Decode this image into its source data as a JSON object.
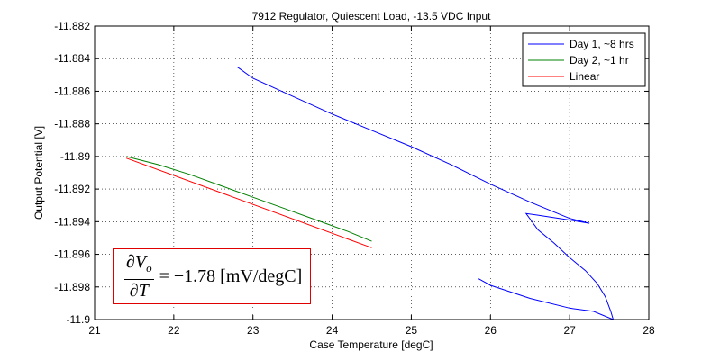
{
  "chart_data": {
    "type": "line",
    "title": "7912 Regulator, Quiescent Load, -13.5 VDC Input",
    "xlabel": "Case Temperature [degC]",
    "ylabel": "Output Potential [V]",
    "xlim": [
      21,
      28
    ],
    "ylim": [
      -11.9,
      -11.882
    ],
    "x_ticks": [
      21,
      22,
      23,
      24,
      25,
      26,
      27,
      28
    ],
    "x_tick_labels": [
      "21",
      "22",
      "23",
      "24",
      "25",
      "26",
      "27",
      "28"
    ],
    "y_ticks": [
      -11.882,
      -11.884,
      -11.886,
      -11.888,
      -11.89,
      -11.892,
      -11.894,
      -11.896,
      -11.898,
      -11.9
    ],
    "y_tick_labels": [
      "-11.882",
      "-11.884",
      "-11.886",
      "-11.888",
      "-11.89",
      "-11.892",
      "-11.894",
      "-11.896",
      "-11.898",
      "-11.9"
    ],
    "grid": true,
    "legend_position": "top-right",
    "series": [
      {
        "name": "Day 1, ~8 hrs",
        "color": "#0000ff",
        "points": [
          [
            22.8,
            -11.8845
          ],
          [
            23.0,
            -11.8852
          ],
          [
            23.5,
            -11.8863
          ],
          [
            24.0,
            -11.8874
          ],
          [
            24.5,
            -11.8884
          ],
          [
            25.0,
            -11.8894
          ],
          [
            25.5,
            -11.8905
          ],
          [
            26.0,
            -11.8917
          ],
          [
            26.5,
            -11.8928
          ],
          [
            27.0,
            -11.8938
          ],
          [
            27.25,
            -11.8941
          ],
          [
            27.0,
            -11.8939
          ],
          [
            26.6,
            -11.8936
          ],
          [
            26.45,
            -11.8935
          ],
          [
            26.6,
            -11.8945
          ],
          [
            26.8,
            -11.8953
          ],
          [
            27.0,
            -11.8962
          ],
          [
            27.2,
            -11.897
          ],
          [
            27.35,
            -11.8978
          ],
          [
            27.45,
            -11.8986
          ],
          [
            27.52,
            -11.8995
          ],
          [
            27.55,
            -11.9
          ],
          [
            27.3,
            -11.8995
          ],
          [
            27.0,
            -11.8993
          ],
          [
            26.5,
            -11.8987
          ],
          [
            26.0,
            -11.8979
          ],
          [
            25.85,
            -11.8975
          ]
        ]
      },
      {
        "name": "Day 2, ~1 hr",
        "color": "#008000",
        "points": [
          [
            21.4,
            -11.89
          ],
          [
            21.8,
            -11.8905
          ],
          [
            22.2,
            -11.8911
          ],
          [
            22.6,
            -11.8918
          ],
          [
            23.0,
            -11.8925
          ],
          [
            23.4,
            -11.8932
          ],
          [
            23.8,
            -11.8939
          ],
          [
            24.2,
            -11.8946
          ],
          [
            24.5,
            -11.8952
          ]
        ]
      },
      {
        "name": "Linear",
        "color": "#ff0000",
        "points": [
          [
            21.4,
            -11.8901
          ],
          [
            24.5,
            -11.8956
          ]
        ]
      }
    ],
    "annotation": {
      "lhs_numerator": "∂V",
      "lhs_numerator_sub": "o",
      "lhs_denominator": "∂T",
      "rhs": "= −1.78 [mV/degC]"
    }
  }
}
